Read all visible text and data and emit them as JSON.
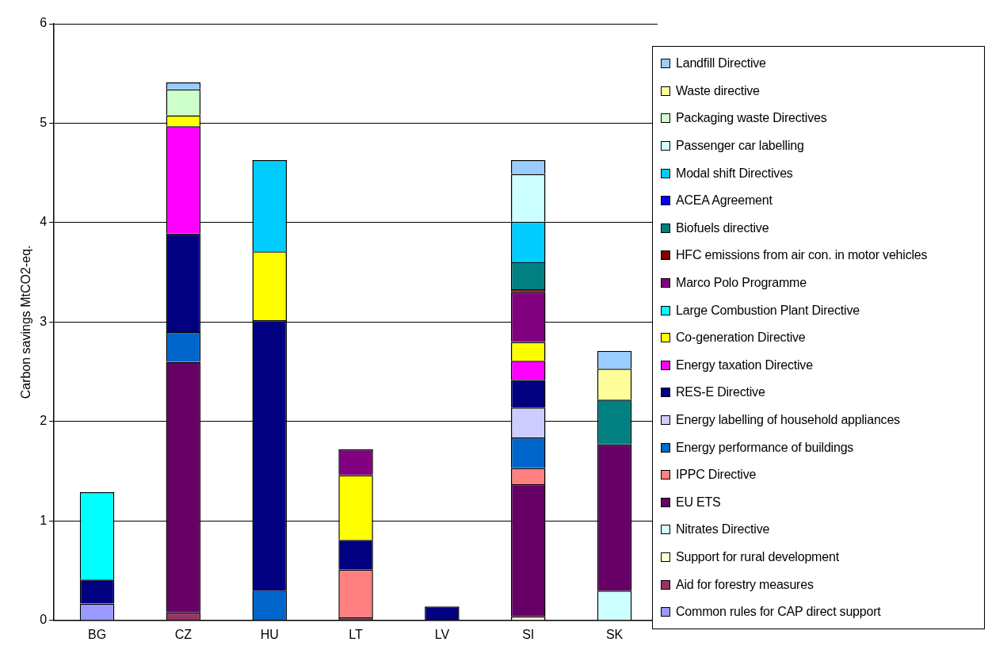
{
  "chart_data": {
    "type": "bar",
    "stacked": true,
    "ylabel": "Carbon savings MtCO2-eq.",
    "categories": [
      "BG",
      "CZ",
      "HU",
      "LT",
      "LV",
      "SI",
      "SK"
    ],
    "ylim": [
      0,
      6
    ],
    "yticks": [
      0,
      1,
      2,
      3,
      4,
      5,
      6
    ],
    "grid": "y",
    "legend": "right",
    "series": [
      {
        "name": "Common rules for CAP direct support",
        "color": "#9999ff",
        "values": [
          0.17,
          null,
          null,
          null,
          null,
          null,
          null
        ]
      },
      {
        "name": "Aid for forestry measures",
        "color": "#993366",
        "values": [
          null,
          0.08,
          null,
          0.03,
          null,
          null,
          null
        ]
      },
      {
        "name": "Support for rural development",
        "color": "#ffffcc",
        "values": [
          null,
          null,
          null,
          null,
          null,
          0.04,
          null
        ]
      },
      {
        "name": "Nitrates Directive",
        "color": "#ccffff",
        "values": [
          null,
          null,
          null,
          null,
          null,
          null,
          0.3
        ]
      },
      {
        "name": "EU ETS",
        "color": "#660066",
        "values": [
          null,
          2.52,
          null,
          null,
          null,
          1.33,
          1.47
        ]
      },
      {
        "name": "IPPC Directive",
        "color": "#ff8080",
        "values": [
          null,
          null,
          null,
          0.48,
          null,
          0.16,
          null
        ]
      },
      {
        "name": "Energy performance of buildings",
        "color": "#0066cc",
        "values": [
          null,
          0.3,
          0.3,
          null,
          null,
          0.31,
          null
        ]
      },
      {
        "name": "Energy labelling of household appliances",
        "color": "#ccccff",
        "values": [
          null,
          null,
          null,
          null,
          null,
          0.3,
          null
        ]
      },
      {
        "name": "RES-E Directive",
        "color": "#000080",
        "values": [
          0.24,
          0.99,
          2.72,
          0.3,
          0.14,
          0.28,
          null
        ]
      },
      {
        "name": "Energy taxation Directive",
        "color": "#ff00ff",
        "values": [
          null,
          1.08,
          null,
          null,
          null,
          0.19,
          null
        ]
      },
      {
        "name": "Co-generation Directive",
        "color": "#ffff00",
        "values": [
          null,
          0.11,
          0.69,
          0.65,
          null,
          0.19,
          null
        ]
      },
      {
        "name": "Large Combustion Plant Directive",
        "color": "#00ffff",
        "values": [
          0.88,
          null,
          null,
          null,
          null,
          null,
          null
        ]
      },
      {
        "name": "Marco Polo Programme",
        "color": "#800080",
        "values": [
          null,
          null,
          null,
          0.26,
          null,
          0.5,
          null
        ]
      },
      {
        "name": "HFC emissions from air con. in motor vehicles",
        "color": "#800000",
        "values": [
          null,
          null,
          null,
          null,
          null,
          0.03,
          null
        ]
      },
      {
        "name": "Biofuels directive",
        "color": "#008080",
        "values": [
          null,
          null,
          null,
          null,
          null,
          0.27,
          0.45
        ]
      },
      {
        "name": "ACEA Agreement",
        "color": "#0000ff",
        "values": [
          null,
          null,
          null,
          null,
          null,
          null,
          null
        ]
      },
      {
        "name": "Modal shift Directives",
        "color": "#00ccff",
        "values": [
          null,
          null,
          0.92,
          null,
          null,
          0.41,
          null
        ]
      },
      {
        "name": "Passenger car labelling",
        "color": "#ccffff",
        "values": [
          null,
          null,
          null,
          null,
          null,
          0.48,
          null
        ]
      },
      {
        "name": "Packaging waste Directives",
        "color": "#ccffcc",
        "values": [
          null,
          0.26,
          null,
          null,
          null,
          null,
          null
        ]
      },
      {
        "name": "Waste directive",
        "color": "#ffff99",
        "values": [
          null,
          null,
          null,
          null,
          null,
          null,
          0.31
        ]
      },
      {
        "name": "Landfill Directive",
        "color": "#99ccff",
        "values": [
          null,
          0.07,
          null,
          null,
          null,
          0.14,
          0.18
        ]
      }
    ]
  }
}
